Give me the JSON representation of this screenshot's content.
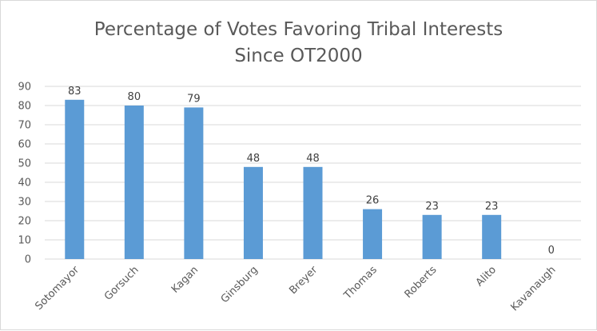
{
  "chart_data": {
    "type": "bar",
    "title": "Percentage of Votes Favoring Tribal Interests",
    "subtitle": "Since OT2000",
    "categories": [
      "Sotomayor",
      "Gorsuch",
      "Kagan",
      "Ginsburg",
      "Breyer",
      "Thomas",
      "Roberts",
      "Alito",
      "Kavanaugh"
    ],
    "values": [
      83,
      80,
      79,
      48,
      48,
      26,
      23,
      23,
      0
    ],
    "data_labels": [
      "83",
      "80",
      "79",
      "48",
      "48",
      "26",
      "23",
      "23",
      "0"
    ],
    "y_ticks": [
      "0",
      "10",
      "20",
      "30",
      "40",
      "50",
      "60",
      "70",
      "80",
      "90"
    ],
    "ylim": [
      0,
      90
    ],
    "grid": true,
    "legend": false,
    "bar_color": "#5B9BD5",
    "grid_color": "#d9d9d9"
  }
}
